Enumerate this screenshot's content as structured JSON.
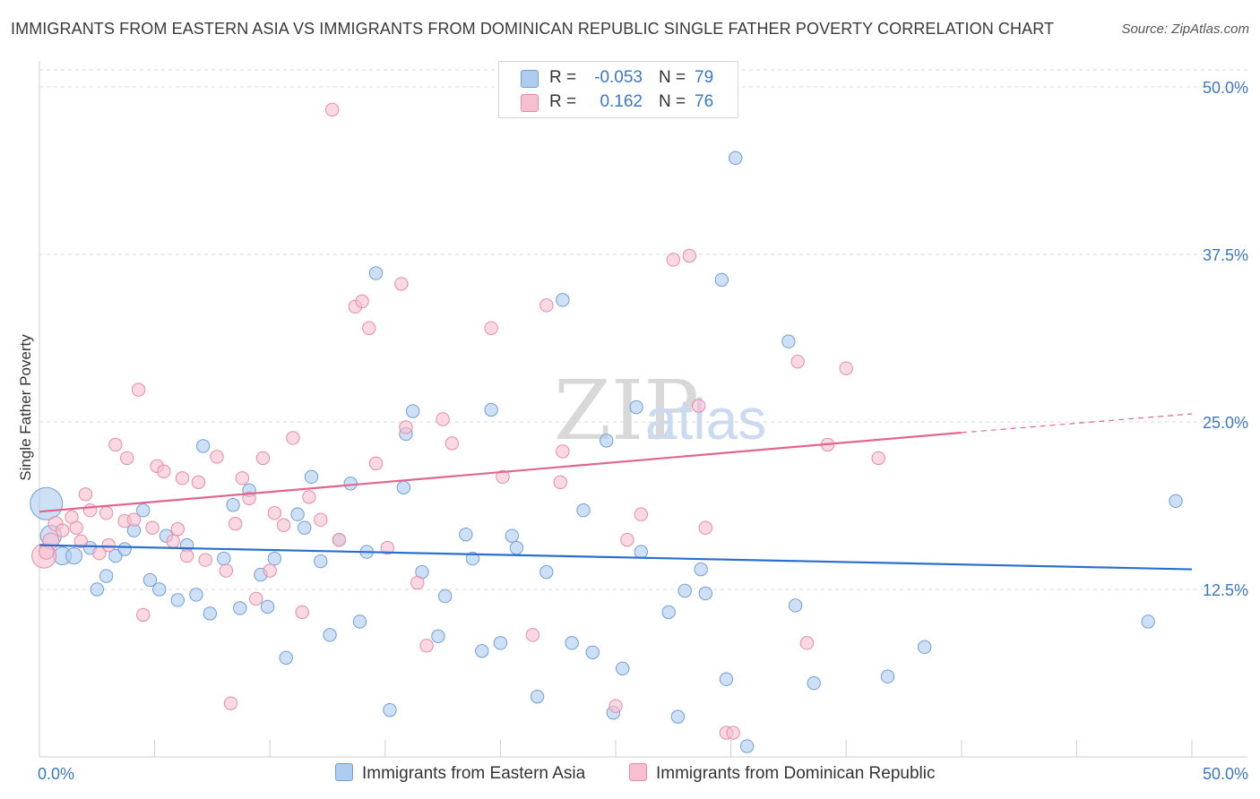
{
  "title": "IMMIGRANTS FROM EASTERN ASIA VS IMMIGRANTS FROM DOMINICAN REPUBLIC SINGLE FATHER POVERTY CORRELATION CHART",
  "source": "Source: ZipAtlas.com",
  "watermark": {
    "zip": "ZIP",
    "atlas": "atlas"
  },
  "colors": {
    "blue_fill": "#aecbf0",
    "blue_stroke": "#6f9fd9",
    "blue_line": "#2a6fd0",
    "pink_fill": "#f7c0d1",
    "pink_stroke": "#e98aa8",
    "pink_line": "#e0668f",
    "tick_text": "#3b78c4",
    "grid": "#d9d9d9"
  },
  "legend": {
    "rows": [
      {
        "r_label": "R =",
        "r_value": "-0.053",
        "n_label": "N =",
        "n_value": "79",
        "color": "#aecbf0",
        "border": "#6f9fd9"
      },
      {
        "r_label": "R =",
        "r_value": "0.162",
        "n_label": "N =",
        "n_value": "76",
        "color": "#f7c0d1",
        "border": "#e98aa8"
      }
    ]
  },
  "bottom_legend": [
    {
      "label": "Immigrants from Eastern Asia",
      "color": "#aecbf0",
      "border": "#6f9fd9"
    },
    {
      "label": "Immigrants from Dominican Republic",
      "color": "#f7c0d1",
      "border": "#e98aa8"
    }
  ],
  "chart_data": {
    "type": "scatter",
    "title": "IMMIGRANTS FROM EASTERN ASIA VS IMMIGRANTS FROM DOMINICAN REPUBLIC SINGLE FATHER POVERTY CORRELATION CHART",
    "xlabel": "",
    "ylabel": "Single Father Poverty",
    "xlim": [
      0,
      50
    ],
    "ylim": [
      0,
      50
    ],
    "x_tick_labels": [
      {
        "value": 0,
        "label": "0.0%"
      },
      {
        "value": 50,
        "label": "50.0%"
      }
    ],
    "y_tick_labels": [
      {
        "value": 12.5,
        "label": "12.5%"
      },
      {
        "value": 25,
        "label": "25.0%"
      },
      {
        "value": 37.5,
        "label": "37.5%"
      },
      {
        "value": 50,
        "label": "50.0%"
      }
    ],
    "grid": true,
    "legend_position": "top-center",
    "series": [
      {
        "name": "Immigrants from Eastern Asia",
        "color": "#aecbf0",
        "trend": {
          "x": [
            0,
            50
          ],
          "y": [
            15.8,
            14.0
          ]
        },
        "points": [
          [
            0.3,
            18.9,
            2.0
          ],
          [
            0.5,
            16.5,
            1.3
          ],
          [
            1.0,
            15.0,
            1.1
          ],
          [
            1.5,
            15.0,
            1.0
          ],
          [
            2.2,
            15.6,
            0.8
          ],
          [
            2.5,
            12.5,
            0.8
          ],
          [
            2.9,
            13.5,
            0.8
          ],
          [
            3.3,
            15.0,
            0.8
          ],
          [
            3.7,
            15.5,
            0.8
          ],
          [
            4.1,
            16.9,
            0.8
          ],
          [
            4.5,
            18.4,
            0.8
          ],
          [
            4.8,
            13.2,
            0.8
          ],
          [
            5.2,
            12.5,
            0.8
          ],
          [
            5.5,
            16.5,
            0.8
          ],
          [
            6.0,
            11.7,
            0.8
          ],
          [
            6.4,
            15.8,
            0.8
          ],
          [
            6.8,
            12.1,
            0.8
          ],
          [
            7.1,
            23.2,
            0.8
          ],
          [
            7.4,
            10.7,
            0.8
          ],
          [
            8.0,
            14.8,
            0.8
          ],
          [
            8.4,
            18.8,
            0.8
          ],
          [
            8.7,
            11.1,
            0.8
          ],
          [
            9.1,
            19.9,
            0.8
          ],
          [
            9.6,
            13.6,
            0.8
          ],
          [
            9.9,
            11.2,
            0.8
          ],
          [
            10.2,
            14.8,
            0.8
          ],
          [
            10.7,
            7.4,
            0.8
          ],
          [
            11.2,
            18.1,
            0.8
          ],
          [
            11.5,
            17.1,
            0.8
          ],
          [
            11.8,
            20.9,
            0.8
          ],
          [
            12.2,
            14.6,
            0.8
          ],
          [
            12.6,
            9.1,
            0.8
          ],
          [
            13.0,
            16.2,
            0.8
          ],
          [
            13.5,
            20.4,
            0.8
          ],
          [
            13.9,
            10.1,
            0.8
          ],
          [
            14.2,
            15.3,
            0.8
          ],
          [
            14.6,
            36.1,
            0.8
          ],
          [
            15.2,
            3.5,
            0.8
          ],
          [
            15.9,
            24.1,
            0.8
          ],
          [
            15.8,
            20.1,
            0.8
          ],
          [
            16.2,
            25.8,
            0.8
          ],
          [
            16.6,
            13.8,
            0.8
          ],
          [
            17.3,
            9.0,
            0.8
          ],
          [
            17.6,
            12.0,
            0.8
          ],
          [
            18.5,
            16.6,
            0.8
          ],
          [
            18.8,
            14.8,
            0.8
          ],
          [
            19.2,
            7.9,
            0.8
          ],
          [
            19.6,
            25.9,
            0.8
          ],
          [
            20.0,
            8.5,
            0.8
          ],
          [
            20.5,
            16.5,
            0.8
          ],
          [
            20.7,
            15.6,
            0.8
          ],
          [
            21.6,
            4.5,
            0.8
          ],
          [
            22.0,
            13.8,
            0.8
          ],
          [
            22.7,
            34.1,
            0.8
          ],
          [
            23.1,
            8.5,
            0.8
          ],
          [
            23.6,
            18.4,
            0.8
          ],
          [
            24.0,
            7.8,
            0.8
          ],
          [
            24.6,
            23.6,
            0.8
          ],
          [
            24.9,
            3.3,
            0.8
          ],
          [
            25.3,
            6.6,
            0.8
          ],
          [
            25.9,
            26.1,
            0.8
          ],
          [
            26.1,
            15.3,
            0.8
          ],
          [
            27.3,
            10.8,
            0.8
          ],
          [
            27.7,
            3.0,
            0.8
          ],
          [
            28.0,
            12.4,
            0.8
          ],
          [
            28.7,
            14.0,
            0.8
          ],
          [
            28.9,
            12.2,
            0.8
          ],
          [
            29.6,
            35.6,
            0.8
          ],
          [
            29.8,
            5.8,
            0.8
          ],
          [
            30.2,
            44.7,
            0.8
          ],
          [
            30.7,
            0.8,
            0.8
          ],
          [
            32.5,
            31.0,
            0.8
          ],
          [
            32.8,
            11.3,
            0.8
          ],
          [
            33.6,
            5.5,
            0.8
          ],
          [
            36.8,
            6.0,
            0.8
          ],
          [
            38.4,
            8.2,
            0.8
          ],
          [
            48.1,
            10.1,
            0.8
          ],
          [
            49.3,
            19.1,
            0.8
          ]
        ]
      },
      {
        "name": "Immigrants from Dominican Republic",
        "color": "#f7c0d1",
        "trend": {
          "x": [
            0,
            40
          ],
          "y": [
            18.3,
            24.2
          ]
        },
        "trend_extension": {
          "x": [
            40,
            50
          ],
          "y": [
            24.2,
            25.6
          ]
        },
        "points": [
          [
            0.2,
            15.0,
            1.5
          ],
          [
            0.5,
            16.1,
            1.0
          ],
          [
            0.7,
            17.4,
            0.9
          ],
          [
            1.0,
            16.9,
            0.8
          ],
          [
            1.4,
            17.9,
            0.8
          ],
          [
            1.6,
            17.1,
            0.8
          ],
          [
            1.8,
            16.1,
            0.8
          ],
          [
            2.0,
            19.6,
            0.8
          ],
          [
            2.2,
            18.4,
            0.8
          ],
          [
            2.6,
            15.2,
            0.8
          ],
          [
            2.9,
            18.2,
            0.8
          ],
          [
            3.0,
            15.8,
            0.8
          ],
          [
            3.3,
            23.3,
            0.8
          ],
          [
            3.7,
            17.6,
            0.8
          ],
          [
            3.8,
            22.3,
            0.8
          ],
          [
            4.1,
            17.7,
            0.8
          ],
          [
            4.3,
            27.4,
            0.8
          ],
          [
            4.5,
            10.6,
            0.8
          ],
          [
            4.9,
            17.1,
            0.8
          ],
          [
            5.1,
            21.7,
            0.8
          ],
          [
            5.4,
            21.3,
            0.8
          ],
          [
            5.8,
            16.1,
            0.8
          ],
          [
            6.0,
            17.0,
            0.8
          ],
          [
            6.2,
            20.8,
            0.8
          ],
          [
            6.4,
            15.0,
            0.8
          ],
          [
            6.9,
            20.5,
            0.8
          ],
          [
            7.2,
            14.7,
            0.8
          ],
          [
            7.7,
            22.4,
            0.8
          ],
          [
            8.1,
            13.9,
            0.8
          ],
          [
            8.3,
            4.0,
            0.8
          ],
          [
            8.5,
            17.4,
            0.8
          ],
          [
            8.8,
            20.8,
            0.8
          ],
          [
            9.1,
            19.3,
            0.8
          ],
          [
            9.4,
            11.8,
            0.8
          ],
          [
            9.7,
            22.3,
            0.8
          ],
          [
            10.0,
            13.9,
            0.8
          ],
          [
            10.2,
            18.2,
            0.8
          ],
          [
            10.6,
            17.3,
            0.8
          ],
          [
            11.0,
            23.8,
            0.8
          ],
          [
            11.4,
            10.8,
            0.8
          ],
          [
            11.7,
            19.4,
            0.8
          ],
          [
            12.2,
            17.7,
            0.8
          ],
          [
            12.7,
            48.3,
            0.8
          ],
          [
            13.0,
            16.2,
            0.8
          ],
          [
            13.7,
            33.6,
            0.8
          ],
          [
            14.0,
            34.0,
            0.8
          ],
          [
            14.3,
            32.0,
            0.8
          ],
          [
            14.6,
            21.9,
            0.8
          ],
          [
            15.1,
            15.6,
            0.8
          ],
          [
            15.7,
            35.3,
            0.8
          ],
          [
            15.9,
            24.6,
            0.8
          ],
          [
            16.4,
            13.0,
            0.8
          ],
          [
            16.8,
            8.3,
            0.8
          ],
          [
            17.5,
            25.2,
            0.8
          ],
          [
            17.9,
            23.4,
            0.8
          ],
          [
            19.6,
            32.0,
            0.8
          ],
          [
            20.1,
            20.9,
            0.8
          ],
          [
            21.4,
            9.1,
            0.8
          ],
          [
            22.0,
            33.7,
            0.8
          ],
          [
            22.6,
            20.5,
            0.8
          ],
          [
            22.7,
            22.8,
            0.8
          ],
          [
            25.0,
            3.8,
            0.8
          ],
          [
            25.5,
            16.2,
            0.8
          ],
          [
            26.1,
            18.1,
            0.8
          ],
          [
            27.5,
            37.1,
            0.8
          ],
          [
            28.2,
            37.4,
            0.8
          ],
          [
            28.6,
            26.2,
            0.8
          ],
          [
            28.9,
            17.1,
            0.8
          ],
          [
            29.8,
            1.8,
            0.8
          ],
          [
            30.1,
            1.8,
            0.8
          ],
          [
            32.9,
            29.5,
            0.8
          ],
          [
            33.3,
            8.5,
            0.8
          ],
          [
            34.2,
            23.3,
            0.8
          ],
          [
            35.0,
            29.0,
            0.8
          ],
          [
            36.4,
            22.3,
            0.8
          ],
          [
            0.3,
            15.3,
            0.9
          ]
        ]
      }
    ]
  }
}
